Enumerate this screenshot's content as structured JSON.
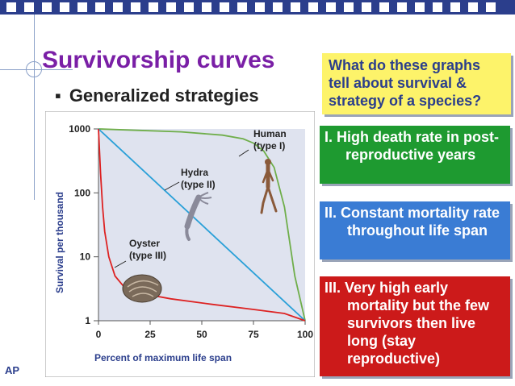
{
  "slide": {
    "title": "Survivorship curves",
    "bullet": "Generalized strategies",
    "footer_tag": "AP",
    "question_box": "What do these graphs tell about survival & strategy of a species?",
    "strategy_boxes": [
      {
        "text": "I.  High death rate in post-reproductive years",
        "color": "#1e9a30"
      },
      {
        "text": "II.  Constant mortality rate throughout life span",
        "color": "#3a7cd4"
      },
      {
        "text": "III. Very high early mortality but the few survivors then live long (stay reproductive)",
        "color": "#cc1a1a"
      }
    ],
    "colors": {
      "title": "#7a1fa6",
      "topbar": "#2b3e8c",
      "question_text": "#2b3e8c",
      "question_bg": "#fdf36a",
      "axis_label": "#2b3e8c"
    }
  },
  "chart_data": {
    "type": "line",
    "title": "",
    "xlabel": "Percent of maximum life span",
    "ylabel": "Survival per thousand",
    "x_ticks": [
      "0",
      "25",
      "50",
      "75",
      "100"
    ],
    "y_ticks": [
      "1",
      "10",
      "100",
      "1000"
    ],
    "xlim": [
      0,
      100
    ],
    "ylim": [
      1,
      1000
    ],
    "y_scale": "log",
    "grid": false,
    "series": [
      {
        "name": "Human (type I)",
        "color": "#6fae4a",
        "x": [
          0,
          20,
          40,
          60,
          70,
          75,
          80,
          85,
          90,
          95,
          100
        ],
        "y": [
          1000,
          950,
          900,
          800,
          700,
          600,
          450,
          250,
          60,
          5,
          1
        ]
      },
      {
        "name": "Hydra (type II)",
        "color": "#2aa0d8",
        "x": [
          0,
          100
        ],
        "y": [
          1000,
          1
        ]
      },
      {
        "name": "Oyster (type III)",
        "color": "#dd2222",
        "x": [
          0,
          1,
          2,
          3,
          5,
          8,
          12,
          20,
          35,
          55,
          75,
          90,
          100
        ],
        "y": [
          1000,
          200,
          60,
          25,
          10,
          5,
          3.5,
          2.7,
          2.2,
          1.8,
          1.5,
          1.3,
          1
        ]
      }
    ],
    "annotations": [
      {
        "label": "Human",
        "sub": "(type I)"
      },
      {
        "label": "Hydra",
        "sub": "(type II)"
      },
      {
        "label": "Oyster",
        "sub": "(type III)"
      }
    ]
  }
}
